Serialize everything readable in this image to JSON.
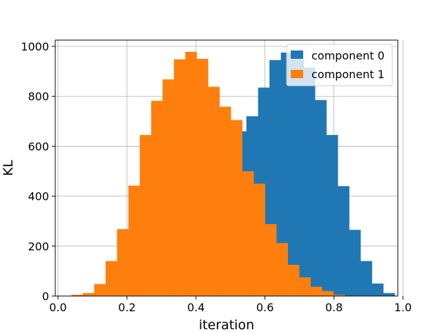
{
  "chart_data": {
    "type": "bar",
    "xlabel": "iteration",
    "ylabel": "KL",
    "xlim": [
      -0.008,
      0.985
    ],
    "ylim": [
      0,
      1025
    ],
    "xticks": [
      {
        "value": 0.0,
        "label": "0.0"
      },
      {
        "value": 0.2,
        "label": "0.2"
      },
      {
        "value": 0.4,
        "label": "0.4"
      },
      {
        "value": 0.6,
        "label": "0.6"
      },
      {
        "value": 0.8,
        "label": "0.8"
      },
      {
        "value": 1.0,
        "label": "1.0"
      }
    ],
    "yticks": [
      {
        "value": 0,
        "label": "0"
      },
      {
        "value": 200,
        "label": "200"
      },
      {
        "value": 400,
        "label": "400"
      },
      {
        "value": 600,
        "label": "600"
      },
      {
        "value": 800,
        "label": "800"
      },
      {
        "value": 1000,
        "label": "1000"
      }
    ],
    "grid": true,
    "legend_position": "top-right",
    "series": [
      {
        "name": "component 0",
        "color": "#1f77b4",
        "bins": [
          [
            0.414,
            0.447,
            2
          ],
          [
            0.447,
            0.48,
            5
          ],
          [
            0.48,
            0.513,
            20
          ],
          [
            0.513,
            0.546,
            660
          ],
          [
            0.546,
            0.58,
            720
          ],
          [
            0.58,
            0.613,
            835
          ],
          [
            0.613,
            0.646,
            945
          ],
          [
            0.646,
            0.679,
            975
          ],
          [
            0.679,
            0.712,
            950
          ],
          [
            0.712,
            0.745,
            915
          ],
          [
            0.745,
            0.778,
            785
          ],
          [
            0.778,
            0.811,
            645
          ],
          [
            0.811,
            0.844,
            440
          ],
          [
            0.844,
            0.877,
            265
          ],
          [
            0.877,
            0.91,
            140
          ],
          [
            0.91,
            0.943,
            50
          ],
          [
            0.943,
            0.976,
            12
          ]
        ]
      },
      {
        "name": "component 1",
        "color": "#ff7f0e",
        "bins": [
          [
            0.039,
            0.072,
            5
          ],
          [
            0.072,
            0.105,
            12
          ],
          [
            0.105,
            0.138,
            48
          ],
          [
            0.138,
            0.171,
            140
          ],
          [
            0.171,
            0.204,
            268
          ],
          [
            0.204,
            0.237,
            442
          ],
          [
            0.237,
            0.27,
            645
          ],
          [
            0.27,
            0.303,
            782
          ],
          [
            0.303,
            0.336,
            868
          ],
          [
            0.336,
            0.369,
            948
          ],
          [
            0.369,
            0.402,
            978
          ],
          [
            0.402,
            0.435,
            950
          ],
          [
            0.435,
            0.468,
            838
          ],
          [
            0.468,
            0.501,
            758
          ],
          [
            0.501,
            0.534,
            705
          ],
          [
            0.534,
            0.567,
            500
          ],
          [
            0.567,
            0.6,
            450
          ],
          [
            0.6,
            0.633,
            288
          ],
          [
            0.633,
            0.666,
            212
          ],
          [
            0.666,
            0.699,
            125
          ],
          [
            0.699,
            0.732,
            75
          ],
          [
            0.732,
            0.765,
            37
          ],
          [
            0.765,
            0.798,
            20
          ],
          [
            0.798,
            0.831,
            5
          ]
        ]
      }
    ]
  }
}
